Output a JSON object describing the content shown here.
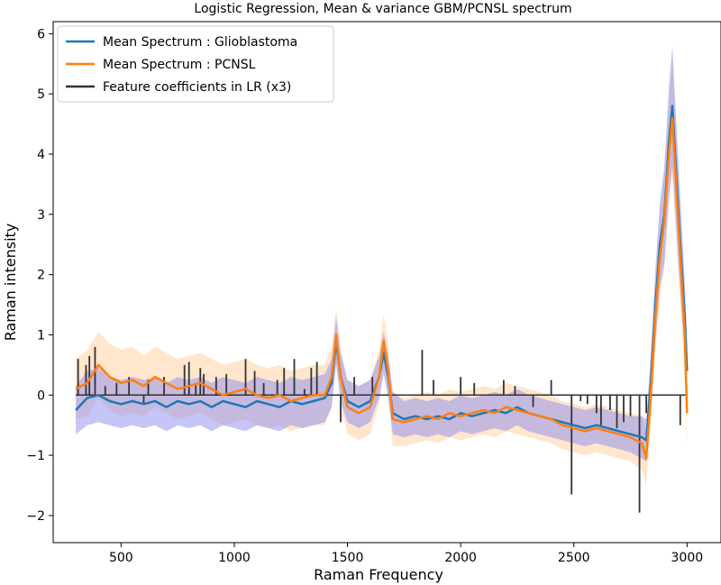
{
  "chart_data": {
    "type": "line",
    "title": "Logistic Regression, Mean & variance GBM/PCNSL spectrum",
    "xlabel": "Raman Frequency",
    "ylabel": "Raman intensity",
    "xlim": [
      200,
      3150
    ],
    "ylim": [
      -2.45,
      6.2
    ],
    "xticks": [
      500,
      1000,
      1500,
      2000,
      2500,
      3000
    ],
    "yticks": [
      -2,
      -1,
      0,
      1,
      2,
      3,
      4,
      5,
      6
    ],
    "grid": false,
    "legend_position": "top-left",
    "series": [
      {
        "name": "Mean Spectrum : Glioblastoma",
        "color": "#1f77b4",
        "band_color": "#8c8cf0",
        "x": [
          300,
          350,
          400,
          450,
          500,
          550,
          600,
          650,
          700,
          750,
          800,
          850,
          900,
          950,
          1000,
          1050,
          1100,
          1150,
          1200,
          1250,
          1300,
          1350,
          1400,
          1430,
          1450,
          1470,
          1500,
          1550,
          1600,
          1640,
          1660,
          1680,
          1700,
          1750,
          1800,
          1850,
          1900,
          1950,
          2000,
          2050,
          2100,
          2150,
          2200,
          2250,
          2300,
          2350,
          2400,
          2450,
          2500,
          2550,
          2600,
          2650,
          2700,
          2750,
          2800,
          2820,
          2840,
          2860,
          2880,
          2900,
          2920,
          2935,
          2950,
          2970,
          2990,
          3000
        ],
        "y": [
          -0.25,
          -0.05,
          0.0,
          -0.1,
          -0.15,
          -0.1,
          -0.15,
          -0.1,
          -0.2,
          -0.1,
          -0.15,
          -0.1,
          -0.2,
          -0.1,
          -0.15,
          -0.2,
          -0.1,
          -0.15,
          -0.2,
          -0.1,
          -0.15,
          -0.1,
          -0.05,
          0.2,
          0.9,
          0.3,
          -0.1,
          -0.2,
          -0.1,
          0.3,
          0.7,
          0.3,
          -0.3,
          -0.4,
          -0.35,
          -0.4,
          -0.35,
          -0.4,
          -0.3,
          -0.35,
          -0.3,
          -0.25,
          -0.3,
          -0.2,
          -0.3,
          -0.35,
          -0.4,
          -0.45,
          -0.5,
          -0.55,
          -0.5,
          -0.55,
          -0.6,
          -0.65,
          -0.7,
          -0.75,
          0.2,
          1.5,
          2.5,
          3.0,
          4.2,
          4.8,
          3.8,
          2.5,
          1.3,
          0.4
        ],
        "band": [
          0.4,
          0.45,
          0.45,
          0.4,
          0.4,
          0.4,
          0.4,
          0.4,
          0.4,
          0.4,
          0.4,
          0.4,
          0.4,
          0.4,
          0.4,
          0.4,
          0.4,
          0.4,
          0.4,
          0.4,
          0.4,
          0.4,
          0.4,
          0.4,
          0.4,
          0.4,
          0.35,
          0.35,
          0.35,
          0.35,
          0.35,
          0.35,
          0.35,
          0.3,
          0.3,
          0.3,
          0.3,
          0.3,
          0.3,
          0.3,
          0.3,
          0.3,
          0.3,
          0.3,
          0.3,
          0.3,
          0.3,
          0.3,
          0.3,
          0.3,
          0.3,
          0.3,
          0.3,
          0.3,
          0.35,
          0.35,
          0.5,
          0.6,
          0.7,
          0.8,
          0.9,
          1.0,
          0.9,
          0.8,
          0.6,
          0.5
        ]
      },
      {
        "name": "Mean Spectrum : PCNSL",
        "color": "#ff7f0e",
        "band_color": "#ffc890",
        "x": [
          300,
          350,
          400,
          450,
          500,
          550,
          600,
          650,
          700,
          750,
          800,
          850,
          900,
          950,
          1000,
          1050,
          1100,
          1150,
          1200,
          1250,
          1300,
          1350,
          1400,
          1430,
          1450,
          1470,
          1500,
          1550,
          1600,
          1640,
          1660,
          1680,
          1700,
          1750,
          1800,
          1850,
          1900,
          1950,
          2000,
          2050,
          2100,
          2150,
          2200,
          2250,
          2300,
          2350,
          2400,
          2450,
          2500,
          2550,
          2600,
          2650,
          2700,
          2750,
          2800,
          2820,
          2840,
          2860,
          2880,
          2900,
          2920,
          2935,
          2950,
          2970,
          2990,
          3000
        ],
        "y": [
          0.1,
          0.2,
          0.5,
          0.3,
          0.2,
          0.25,
          0.15,
          0.3,
          0.2,
          0.1,
          0.15,
          0.2,
          0.1,
          0.0,
          0.05,
          0.1,
          0.0,
          -0.05,
          0.0,
          -0.1,
          -0.05,
          0.0,
          0.0,
          0.3,
          1.0,
          0.3,
          -0.2,
          -0.3,
          -0.2,
          0.3,
          0.9,
          0.4,
          -0.4,
          -0.45,
          -0.4,
          -0.35,
          -0.4,
          -0.3,
          -0.35,
          -0.3,
          -0.25,
          -0.3,
          -0.2,
          -0.25,
          -0.3,
          -0.35,
          -0.4,
          -0.5,
          -0.55,
          -0.6,
          -0.55,
          -0.6,
          -0.65,
          -0.7,
          -0.8,
          -1.05,
          0.0,
          1.3,
          2.3,
          2.9,
          4.0,
          4.6,
          3.6,
          2.3,
          1.0,
          -0.3
        ],
        "band": [
          0.5,
          0.55,
          0.55,
          0.55,
          0.55,
          0.55,
          0.5,
          0.5,
          0.5,
          0.5,
          0.5,
          0.5,
          0.5,
          0.5,
          0.5,
          0.5,
          0.5,
          0.5,
          0.5,
          0.5,
          0.5,
          0.5,
          0.5,
          0.5,
          0.45,
          0.45,
          0.45,
          0.45,
          0.45,
          0.45,
          0.45,
          0.45,
          0.45,
          0.4,
          0.4,
          0.4,
          0.4,
          0.4,
          0.4,
          0.4,
          0.4,
          0.4,
          0.4,
          0.4,
          0.4,
          0.4,
          0.4,
          0.4,
          0.4,
          0.4,
          0.4,
          0.4,
          0.4,
          0.4,
          0.45,
          0.45,
          0.5,
          0.6,
          0.7,
          0.8,
          0.9,
          1.0,
          0.9,
          0.8,
          0.7,
          0.6
        ]
      }
    ],
    "feature_coefficients": {
      "name": "Feature coefficients in LR (x3)",
      "color": "#333333",
      "x_range": [
        300,
        3000
      ],
      "x": [
        310,
        345,
        360,
        385,
        430,
        480,
        535,
        600,
        620,
        690,
        780,
        800,
        830,
        850,
        865,
        920,
        965,
        1050,
        1090,
        1130,
        1190,
        1220,
        1265,
        1310,
        1340,
        1365,
        1470,
        1530,
        1610,
        1830,
        1880,
        2000,
        2060,
        2190,
        2240,
        2320,
        2400,
        2490,
        2530,
        2560,
        2600,
        2620,
        2660,
        2690,
        2720,
        2750,
        2790,
        2820,
        2970
      ],
      "y": [
        0.6,
        0.5,
        0.65,
        0.8,
        0.15,
        0.2,
        0.3,
        -0.15,
        0.25,
        0.3,
        0.5,
        0.55,
        0.2,
        0.45,
        0.35,
        0.3,
        0.35,
        0.6,
        0.4,
        0.2,
        0.25,
        0.45,
        0.6,
        0.1,
        0.45,
        0.55,
        -0.45,
        0.3,
        0.3,
        0.75,
        0.25,
        0.3,
        0.2,
        0.25,
        0.15,
        -0.2,
        0.25,
        -1.65,
        -0.1,
        -0.15,
        -0.3,
        -0.5,
        -0.25,
        -0.55,
        -0.45,
        -0.35,
        -1.95,
        -0.3,
        -0.5
      ]
    }
  }
}
